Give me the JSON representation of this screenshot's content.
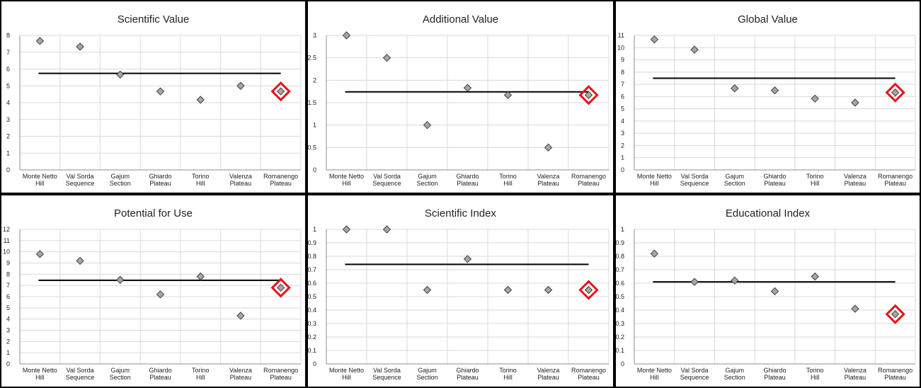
{
  "colors": {
    "marker_fill": "#a6a6a6",
    "marker_stroke": "#404040",
    "highlight": "#e8101a",
    "mean_line": "#000000",
    "grid": "#d9d9d9",
    "border": "#000000"
  },
  "chart_data": [
    {
      "type": "scatter",
      "title": "Scientific Value",
      "categories": [
        "Monte Netto Hill",
        "Val Sorda Sequence",
        "Gajum Section",
        "Ghiardo Plateau",
        "Torino Hill",
        "Valenza Plateau",
        "Romanengo Plateau"
      ],
      "values": [
        7.67,
        7.33,
        5.67,
        4.67,
        4.17,
        5.0,
        4.67
      ],
      "mean": 5.74,
      "ylim": [
        0,
        8
      ],
      "ytick_step": 1,
      "highlight_index": 6,
      "grid": true
    },
    {
      "type": "scatter",
      "title": "Additional Value",
      "categories": [
        "Monte Netto Hill",
        "Val Sorda Sequence",
        "Gajum Section",
        "Ghiardo Plateau",
        "Torino Hill",
        "Valenza Plateau",
        "Romanengo Plateau"
      ],
      "values": [
        3.0,
        2.5,
        1.0,
        1.83,
        1.67,
        0.5,
        1.67
      ],
      "mean": 1.74,
      "ylim": [
        0,
        3
      ],
      "ytick_step": 0.5,
      "highlight_index": 6,
      "grid": true
    },
    {
      "type": "scatter",
      "title": "Global Value",
      "categories": [
        "Monte Netto Hill",
        "Val Sorda Sequence",
        "Gajum Section",
        "Ghiardo Plateau",
        "Torino Hill",
        "Valenza Plateau",
        "Romanengo Plateau"
      ],
      "values": [
        10.67,
        9.83,
        6.67,
        6.5,
        5.83,
        5.5,
        6.33
      ],
      "mean": 7.5,
      "ylim": [
        0,
        11
      ],
      "ytick_step": 1,
      "highlight_index": 6,
      "grid": true
    },
    {
      "type": "scatter",
      "title": "Potential for Use",
      "categories": [
        "Monte Netto Hill",
        "Val Sorda Sequence",
        "Gajum Section",
        "Ghiardo Plateau",
        "Torino Hill",
        "Valenza Plateau",
        "Romanengo Plateau"
      ],
      "values": [
        9.8,
        9.2,
        7.5,
        6.2,
        7.8,
        4.3,
        6.8
      ],
      "mean": 7.46,
      "ylim": [
        0,
        12
      ],
      "ytick_step": 1,
      "highlight_index": 6,
      "grid": true
    },
    {
      "type": "scatter",
      "title": "Scientific Index",
      "categories": [
        "Monte Netto Hill",
        "Val Sorda Sequence",
        "Gajum Section",
        "Ghiardo Plateau",
        "Torino Hill",
        "Valenza Plateau",
        "Romanengo Plateau"
      ],
      "values": [
        1.0,
        1.0,
        0.55,
        0.78,
        0.55,
        0.55,
        0.55
      ],
      "mean": 0.74,
      "ylim": [
        0,
        1
      ],
      "ytick_step": 0.1,
      "highlight_index": 6,
      "grid": true
    },
    {
      "type": "scatter",
      "title": "Educational Index",
      "categories": [
        "Monte Netto Hill",
        "Val Sorda Sequence",
        "Gajum Section",
        "Ghiardo Plateau",
        "Torino Hill",
        "Valenza Plateau",
        "Romanengo Plateau"
      ],
      "values": [
        0.82,
        0.61,
        0.62,
        0.54,
        0.65,
        0.41,
        0.37
      ],
      "mean": 0.61,
      "ylim": [
        0,
        1
      ],
      "ytick_step": 0.1,
      "highlight_index": 6,
      "grid": true
    }
  ]
}
